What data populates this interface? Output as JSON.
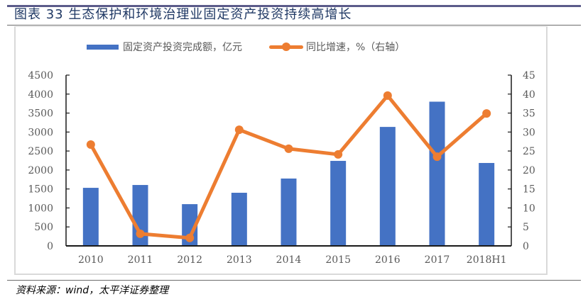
{
  "header": {
    "title": "图表 33 生态保护和环境治理业固定资产投资持续高增长"
  },
  "legend": {
    "bar_label": "固定资产投资完成额，亿元",
    "line_label": "同比增速，%（右轴）"
  },
  "footer": {
    "source": "资料来源：wind，太平洋证券整理"
  },
  "colors": {
    "bar": "#4472c4",
    "line": "#ed7d31",
    "title": "#1f3864",
    "axis_text": "#595959"
  },
  "chart_data": {
    "type": "bar+line",
    "title": "图表 33 生态保护和环境治理业固定资产投资持续高增长",
    "categories": [
      "2010",
      "2011",
      "2012",
      "2013",
      "2014",
      "2015",
      "2016",
      "2017",
      "2018H1"
    ],
    "series": [
      {
        "name": "固定资产投资完成额，亿元",
        "type": "bar",
        "axis": "left",
        "values": [
          1530,
          1605,
          1100,
          1400,
          1775,
          2240,
          3135,
          3800,
          2185
        ]
      },
      {
        "name": "同比增速，%（右轴）",
        "type": "line",
        "axis": "right",
        "values": [
          26.7,
          3.2,
          2.1,
          30.6,
          25.6,
          24.1,
          39.6,
          23.5,
          34.9
        ]
      }
    ],
    "y_left": {
      "min": 0,
      "max": 4500,
      "ticks": [
        0,
        500,
        1000,
        1500,
        2000,
        2500,
        3000,
        3500,
        4000,
        4500
      ]
    },
    "y_right": {
      "min": 0,
      "max": 45,
      "ticks": [
        0,
        5,
        10,
        15,
        20,
        25,
        30,
        35,
        40,
        45
      ]
    },
    "xlabel": "",
    "ylabel": "",
    "grid": false,
    "legend_position": "top"
  }
}
